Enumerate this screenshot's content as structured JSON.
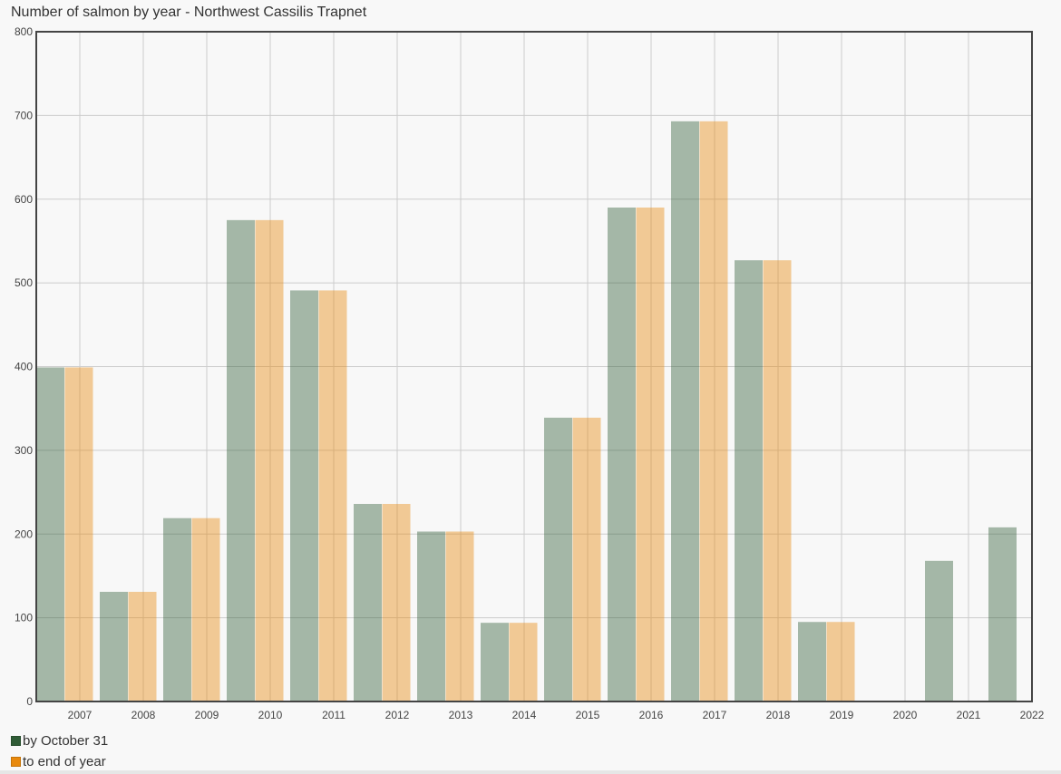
{
  "title": "Number of salmon by year - Northwest Cassilis Trapnet",
  "colors": {
    "series1": "#2f5c36",
    "series2": "#e8890c",
    "grid": "#cccccc",
    "axis": "#444444"
  },
  "chart_data": {
    "type": "bar",
    "title": "Number of salmon by year - Northwest Cassilis Trapnet",
    "xlabel": "",
    "ylabel": "",
    "ylim": [
      0,
      800
    ],
    "yticks": [
      0,
      100,
      200,
      300,
      400,
      500,
      600,
      700,
      800
    ],
    "categories": [
      "2007",
      "2008",
      "2009",
      "2010",
      "2011",
      "2012",
      "2013",
      "2014",
      "2015",
      "2016",
      "2017",
      "2018",
      "2019",
      "2020",
      "2021",
      "2022"
    ],
    "series": [
      {
        "name": "by October 31",
        "values": [
          399,
          131,
          219,
          575,
          491,
          236,
          203,
          94,
          339,
          590,
          693,
          527,
          95,
          null,
          168,
          208
        ]
      },
      {
        "name": "to end of year",
        "values": [
          399,
          131,
          219,
          575,
          491,
          236,
          203,
          94,
          339,
          590,
          693,
          527,
          95,
          null,
          null,
          null
        ]
      }
    ],
    "grid": true,
    "legend_position": "bottom-left"
  }
}
